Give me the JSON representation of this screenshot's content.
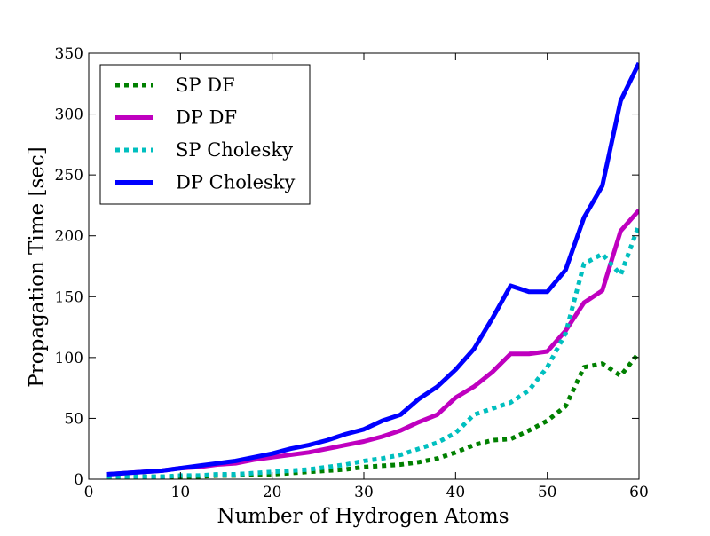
{
  "chart_data": {
    "type": "line",
    "title": "",
    "xlabel": "Number of Hydrogen Atoms",
    "ylabel": "Propagation Time [sec]",
    "xlim": [
      0,
      60
    ],
    "ylim": [
      0,
      350
    ],
    "xticks": [
      0,
      10,
      20,
      30,
      40,
      50,
      60
    ],
    "yticks": [
      0,
      50,
      100,
      150,
      200,
      250,
      300,
      350
    ],
    "xtick_labels": [
      "0",
      "10",
      "20",
      "30",
      "40",
      "50",
      "60"
    ],
    "ytick_labels": [
      "0",
      "50",
      "100",
      "150",
      "200",
      "250",
      "300",
      "350"
    ],
    "grid": false,
    "legend_position": "top-left",
    "x": [
      2,
      4,
      6,
      8,
      10,
      12,
      14,
      16,
      18,
      20,
      22,
      24,
      26,
      28,
      30,
      32,
      34,
      36,
      38,
      40,
      42,
      44,
      46,
      48,
      50,
      52,
      54,
      56,
      58,
      60
    ],
    "series": [
      {
        "name": "SP DF",
        "color": "#008000",
        "style": "dotted",
        "values": [
          2,
          2,
          2,
          2,
          2,
          2,
          3,
          3,
          4,
          4,
          5,
          6,
          7,
          8,
          10,
          11,
          12,
          14,
          17,
          22,
          28,
          32,
          33,
          40,
          48,
          60,
          92,
          95,
          85,
          104
        ]
      },
      {
        "name": "DP DF",
        "color": "#bf00bf",
        "style": "solid",
        "values": [
          4,
          5,
          6,
          7,
          9,
          10,
          12,
          13,
          16,
          18,
          20,
          22,
          25,
          28,
          31,
          35,
          40,
          47,
          53,
          67,
          76,
          88,
          103,
          103,
          105,
          122,
          145,
          155,
          204,
          221
        ]
      },
      {
        "name": "SP Cholesky",
        "color": "#00bfbf",
        "style": "dotted",
        "values": [
          2,
          2,
          2,
          2,
          3,
          3,
          4,
          4,
          5,
          6,
          7,
          8,
          10,
          12,
          15,
          17,
          20,
          25,
          30,
          38,
          53,
          58,
          63,
          73,
          92,
          120,
          177,
          185,
          168,
          209
        ]
      },
      {
        "name": "DP Cholesky",
        "color": "#0000ff",
        "style": "solid",
        "values": [
          4,
          5,
          6,
          7,
          9,
          11,
          13,
          15,
          18,
          21,
          25,
          28,
          32,
          37,
          41,
          48,
          53,
          66,
          76,
          90,
          107,
          132,
          159,
          154,
          154,
          172,
          215,
          241,
          311,
          342
        ]
      }
    ]
  }
}
